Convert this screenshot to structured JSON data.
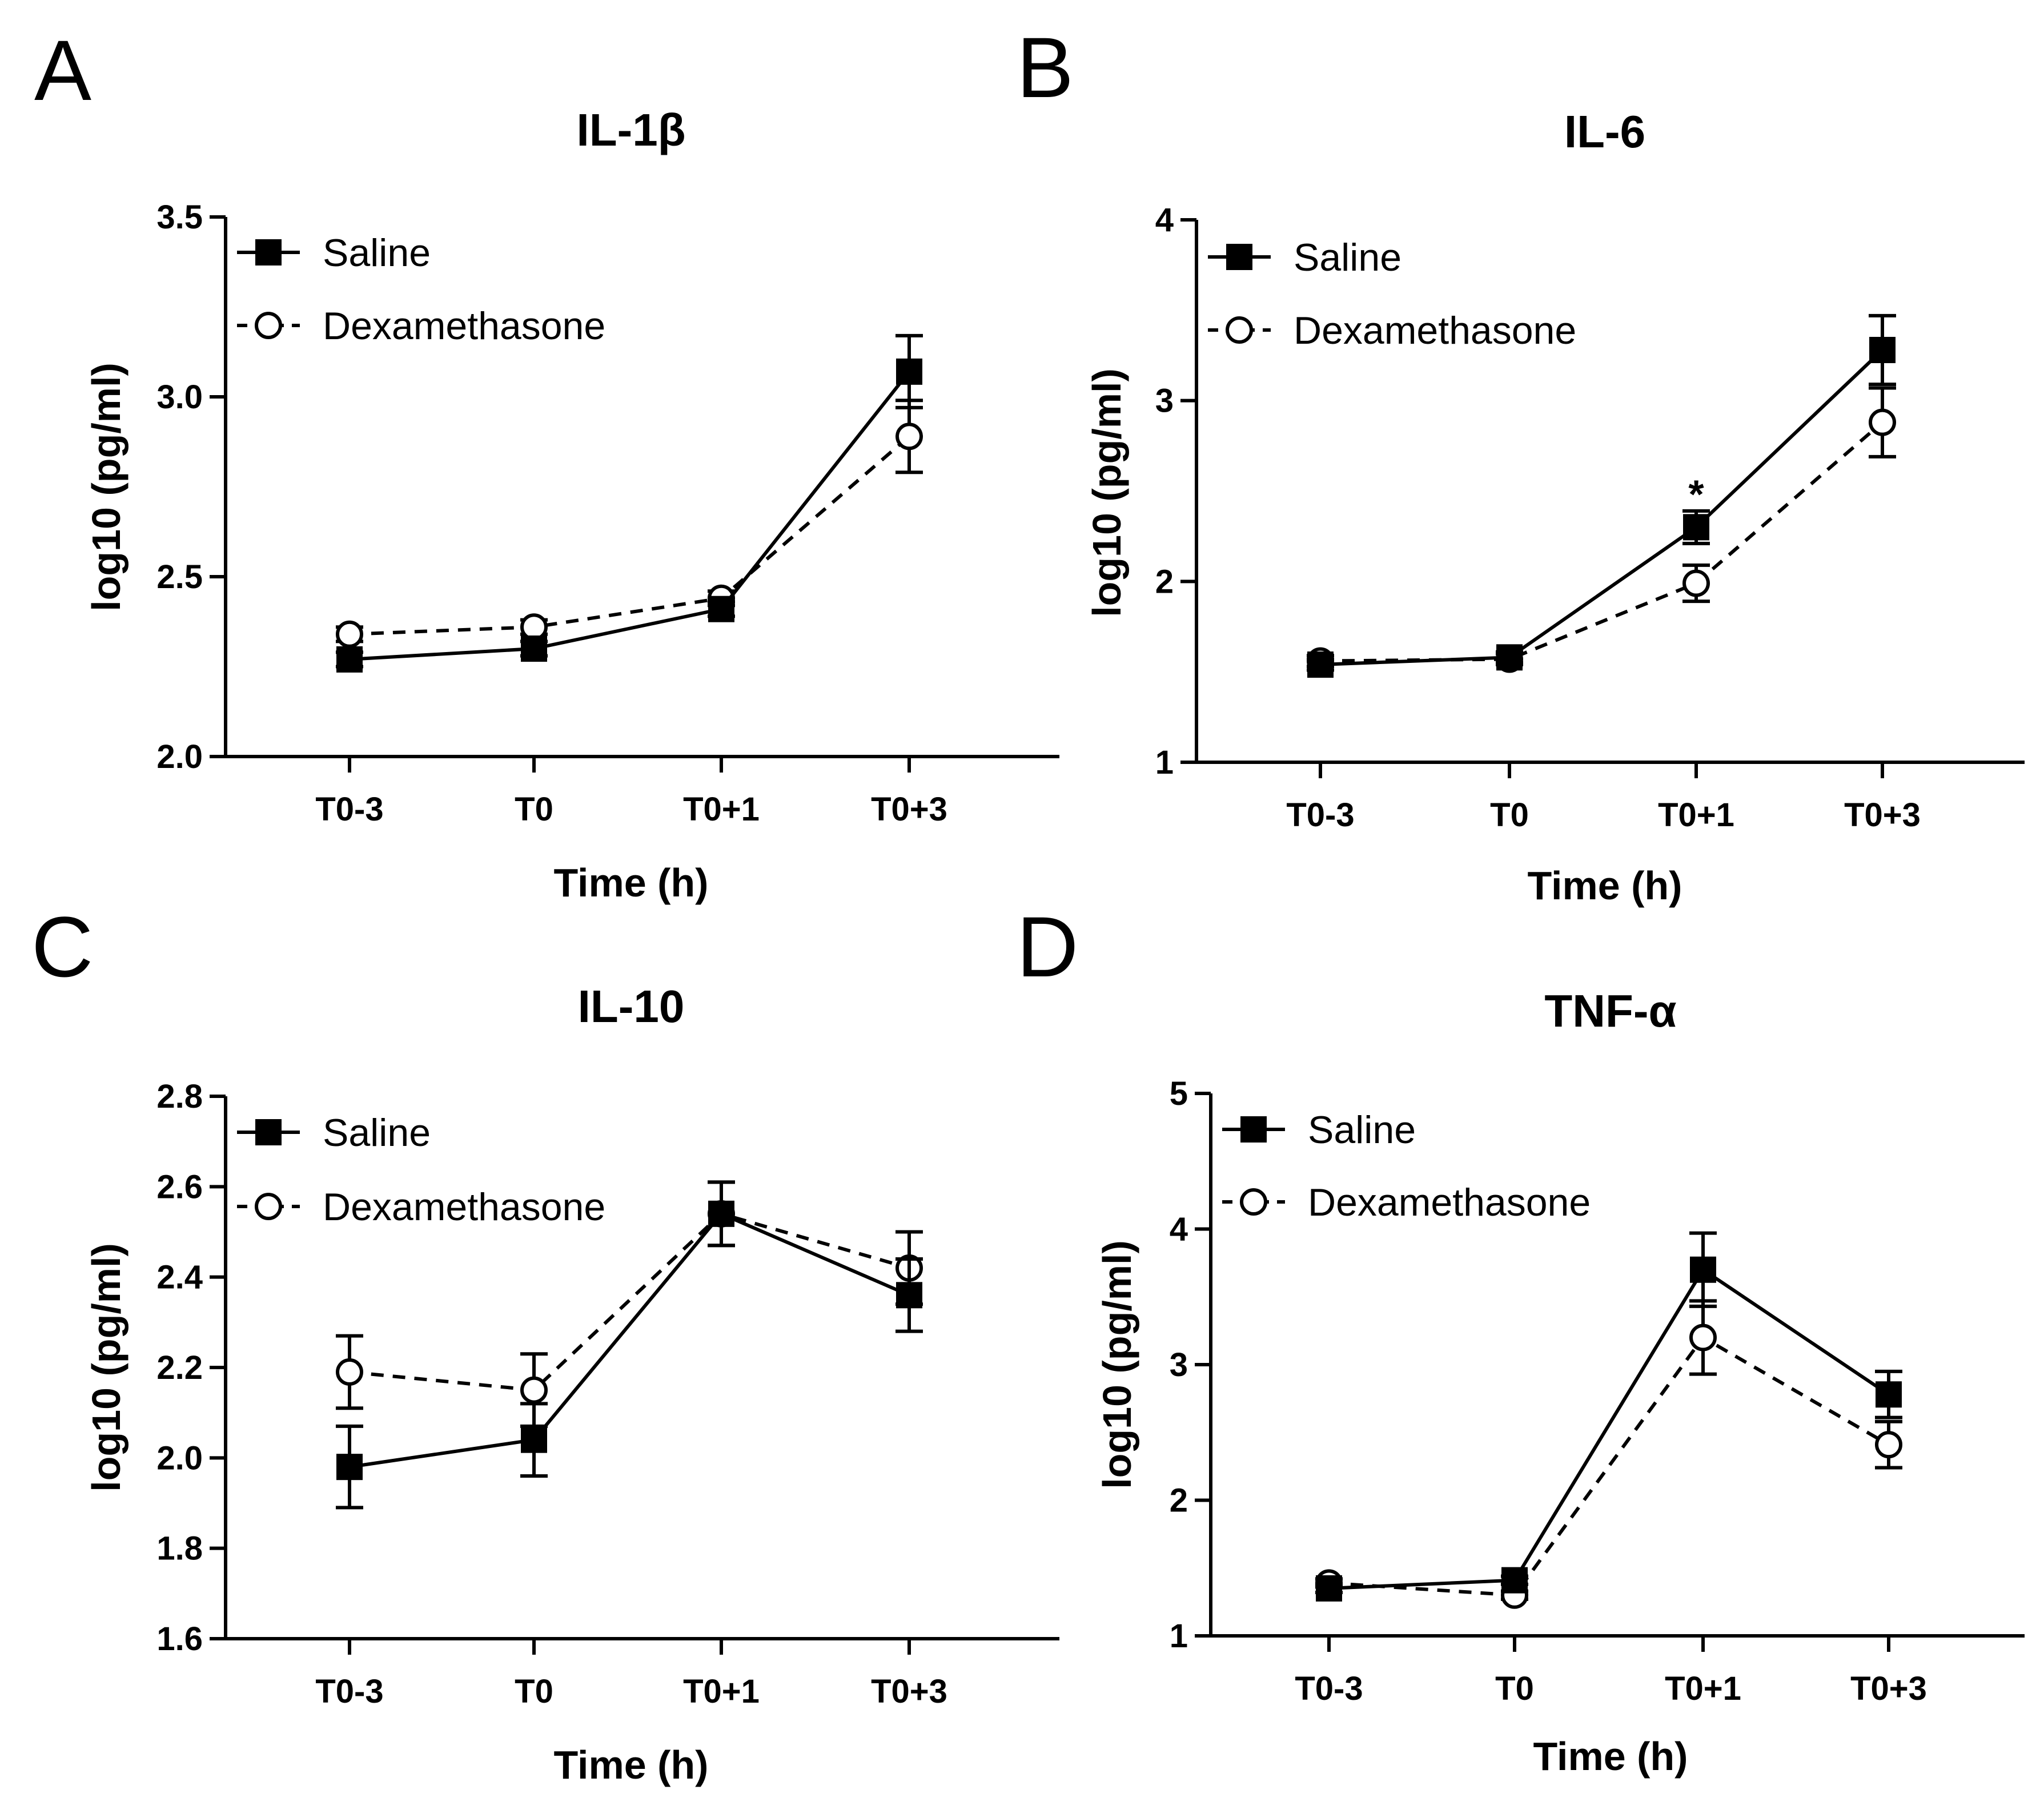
{
  "chart_data": [
    {
      "panel": "A",
      "type": "line",
      "title": "IL-1β",
      "xlabel": "Time (h)",
      "ylabel": "log10 (pg/ml)",
      "categories": [
        "T0-3",
        "T0",
        "T0+1",
        "T0+3"
      ],
      "ylim": [
        2.0,
        3.5
      ],
      "yticks": [
        2.0,
        2.5,
        3.0,
        3.5
      ],
      "yticklabels": [
        "2.0",
        "2.5",
        "3.0",
        "3.5"
      ],
      "legend_position": "top-left",
      "series": [
        {
          "name": "Saline",
          "style": "solid-filled-square",
          "values": [
            2.27,
            2.3,
            2.41,
            3.07
          ],
          "errors": [
            0.02,
            0.02,
            0.02,
            0.1
          ]
        },
        {
          "name": "Dexamethasone",
          "style": "dashed-open-circle",
          "values": [
            2.34,
            2.36,
            2.44,
            2.89
          ],
          "errors": [
            0.02,
            0.02,
            0.02,
            0.1
          ]
        }
      ],
      "annotations": []
    },
    {
      "panel": "B",
      "type": "line",
      "title": "IL-6",
      "xlabel": "Time (h)",
      "ylabel": "log10 (pg/ml)",
      "categories": [
        "T0-3",
        "T0",
        "T0+1",
        "T0+3"
      ],
      "ylim": [
        1,
        4
      ],
      "yticks": [
        1,
        2,
        3,
        4
      ],
      "yticklabels": [
        "1",
        "2",
        "3",
        "4"
      ],
      "legend_position": "top-left",
      "series": [
        {
          "name": "Saline",
          "style": "solid-filled-square",
          "values": [
            1.54,
            1.58,
            2.3,
            3.28
          ],
          "errors": [
            0.03,
            0.03,
            0.09,
            0.19
          ]
        },
        {
          "name": "Dexamethasone",
          "style": "dashed-open-circle",
          "values": [
            1.56,
            1.57,
            1.99,
            2.88
          ],
          "errors": [
            0.03,
            0.03,
            0.1,
            0.19
          ]
        }
      ],
      "annotations": [
        {
          "text": "*",
          "category": "T0+1",
          "value": 2.52
        }
      ]
    },
    {
      "panel": "C",
      "type": "line",
      "title": "IL-10",
      "xlabel": "Time (h)",
      "ylabel": "log10 (pg/ml)",
      "categories": [
        "T0-3",
        "T0",
        "T0+1",
        "T0+3"
      ],
      "ylim": [
        1.6,
        2.8
      ],
      "yticks": [
        1.6,
        1.8,
        2.0,
        2.2,
        2.4,
        2.6,
        2.8
      ],
      "yticklabels": [
        "1.6",
        "1.8",
        "2.0",
        "2.2",
        "2.4",
        "2.6",
        "2.8"
      ],
      "legend_position": "top-left",
      "series": [
        {
          "name": "Saline",
          "style": "solid-filled-square",
          "values": [
            1.98,
            2.04,
            2.54,
            2.36
          ],
          "errors": [
            0.09,
            0.08,
            0.07,
            0.08
          ]
        },
        {
          "name": "Dexamethasone",
          "style": "dashed-open-circle",
          "values": [
            2.19,
            2.15,
            2.54,
            2.42
          ],
          "errors": [
            0.08,
            0.08,
            0.07,
            0.08
          ]
        }
      ],
      "annotations": []
    },
    {
      "panel": "D",
      "type": "line",
      "title": "TNF-α",
      "xlabel": "Time (h)",
      "ylabel": "log10 (pg/ml)",
      "categories": [
        "T0-3",
        "T0",
        "T0+1",
        "T0+3"
      ],
      "ylim": [
        1,
        5
      ],
      "yticks": [
        1,
        2,
        3,
        4,
        5
      ],
      "yticklabels": [
        "1",
        "2",
        "3",
        "4",
        "5"
      ],
      "legend_position": "top-left",
      "series": [
        {
          "name": "Saline",
          "style": "solid-filled-square",
          "values": [
            1.35,
            1.41,
            3.7,
            2.78
          ],
          "errors": [
            0.03,
            0.03,
            0.27,
            0.17
          ]
        },
        {
          "name": "Dexamethasone",
          "style": "dashed-open-circle",
          "values": [
            1.39,
            1.3,
            3.2,
            2.41
          ],
          "errors": [
            0.03,
            0.03,
            0.27,
            0.17
          ]
        }
      ],
      "annotations": []
    }
  ]
}
